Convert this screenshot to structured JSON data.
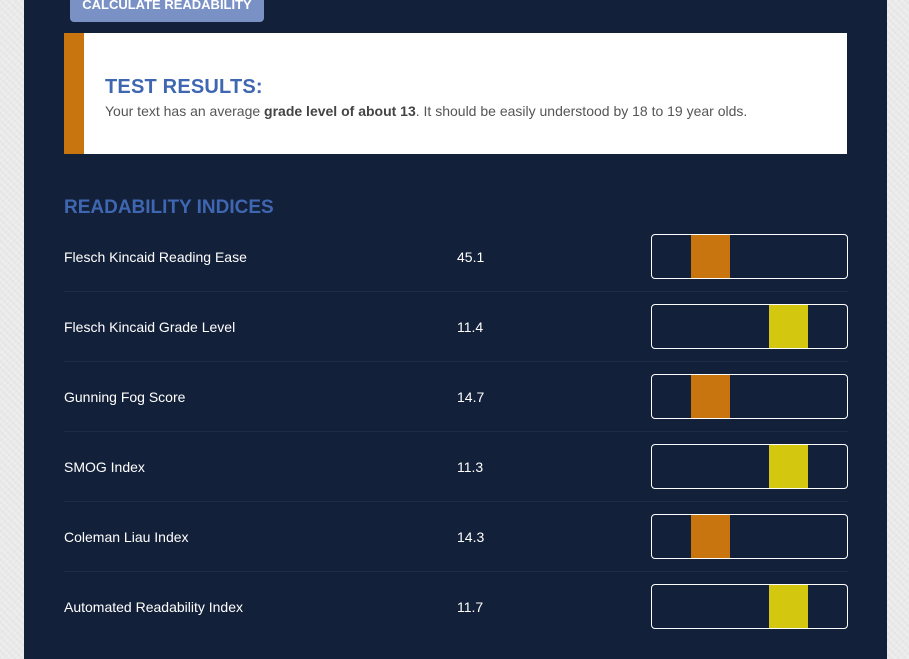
{
  "calculate_button": {
    "label": "CALCULATE READABILITY"
  },
  "results": {
    "title": "TEST RESULTS:",
    "text_before": "Your text has an average ",
    "text_bold": "grade level of about 13",
    "text_after": ". It should be easily understood by 18 to 19 year olds.",
    "accent_color": "#c87510"
  },
  "indices": {
    "title": "READABILITY INDICES",
    "items": [
      {
        "label": "Flesch Kincaid Reading Ease",
        "value": "45.1",
        "meter_color": "orange",
        "meter_segment": 2
      },
      {
        "label": "Flesch Kincaid Grade Level",
        "value": "11.4",
        "meter_color": "yellow",
        "meter_segment": 4
      },
      {
        "label": "Gunning Fog Score",
        "value": "14.7",
        "meter_color": "orange",
        "meter_segment": 2
      },
      {
        "label": "SMOG Index",
        "value": "11.3",
        "meter_color": "yellow",
        "meter_segment": 4
      },
      {
        "label": "Coleman Liau Index",
        "value": "14.3",
        "meter_color": "orange",
        "meter_segment": 2
      },
      {
        "label": "Automated Readability Index",
        "value": "11.7",
        "meter_color": "yellow",
        "meter_segment": 4
      }
    ]
  },
  "colors": {
    "panel_bg": "#132039",
    "heading": "#3f67b1",
    "orange": "#c87510",
    "yellow": "#d3c80f",
    "button": "#7a91c6"
  }
}
